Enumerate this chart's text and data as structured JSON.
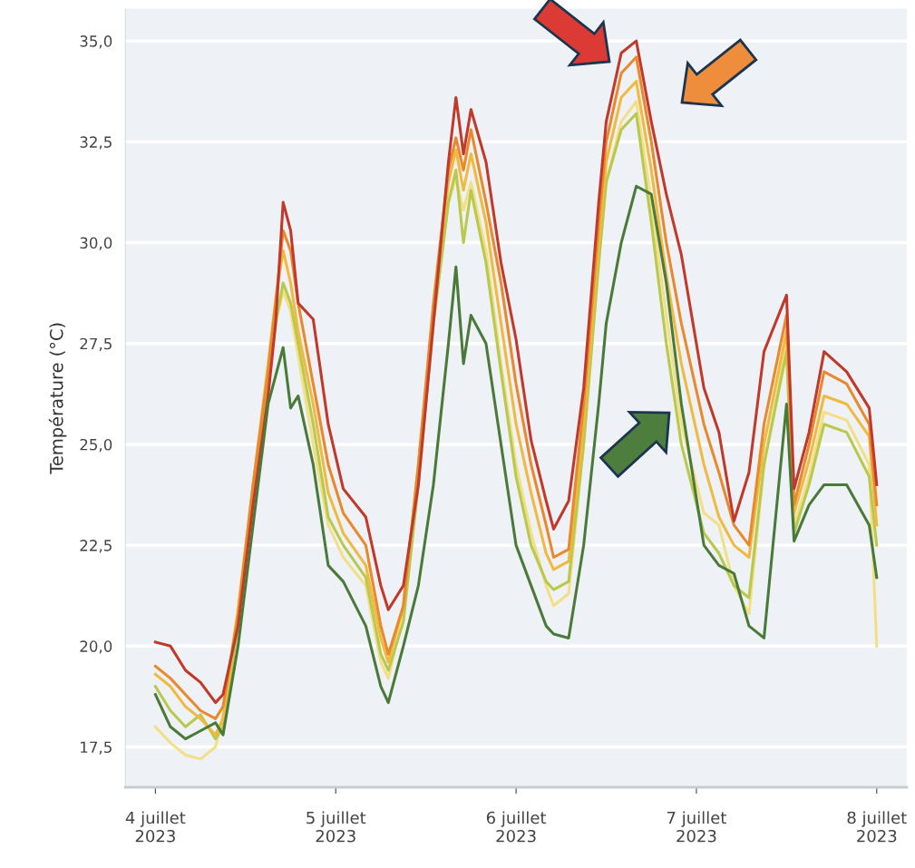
{
  "chart_data": {
    "type": "line",
    "ylabel": "Température (°C)",
    "x": [
      "2023-07-04T00:00",
      "2023-07-04T02:00",
      "2023-07-04T04:00",
      "2023-07-04T06:00",
      "2023-07-04T08:00",
      "2023-07-04T09:00",
      "2023-07-04T11:00",
      "2023-07-04T13:00",
      "2023-07-04T15:00",
      "2023-07-04T16:00",
      "2023-07-04T17:00",
      "2023-07-04T18:00",
      "2023-07-04T19:00",
      "2023-07-04T21:00",
      "2023-07-04T23:00",
      "2023-07-05T01:00",
      "2023-07-05T04:00",
      "2023-07-05T06:00",
      "2023-07-05T07:00",
      "2023-07-05T09:00",
      "2023-07-05T11:00",
      "2023-07-05T13:00",
      "2023-07-05T15:00",
      "2023-07-05T16:00",
      "2023-07-05T17:00",
      "2023-07-05T18:00",
      "2023-07-05T20:00",
      "2023-07-05T22:00",
      "2023-07-06T00:00",
      "2023-07-06T02:00",
      "2023-07-06T04:00",
      "2023-07-06T05:00",
      "2023-07-06T07:00",
      "2023-07-06T09:00",
      "2023-07-06T11:00",
      "2023-07-06T12:00",
      "2023-07-06T14:00",
      "2023-07-06T16:00",
      "2023-07-06T18:00",
      "2023-07-06T20:00",
      "2023-07-06T22:00",
      "2023-07-07T01:00",
      "2023-07-07T03:00",
      "2023-07-07T05:00",
      "2023-07-07T07:00",
      "2023-07-07T09:00",
      "2023-07-07T12:00",
      "2023-07-07T13:00",
      "2023-07-07T15:00",
      "2023-07-07T17:00",
      "2023-07-07T20:00",
      "2023-07-07T23:00",
      "2023-07-08T00:00"
    ],
    "series": [
      {
        "color": "#f3df86",
        "values": [
          18.0,
          17.6,
          17.3,
          17.2,
          17.5,
          18.3,
          21.0,
          24.0,
          26.5,
          28.0,
          28.8,
          28.3,
          27.2,
          25.0,
          23.0,
          22.2,
          21.5,
          19.6,
          19.2,
          20.8,
          24.2,
          28.0,
          31.0,
          31.6,
          30.8,
          31.5,
          29.8,
          27.0,
          24.5,
          22.8,
          21.5,
          21.0,
          21.3,
          25.0,
          29.5,
          31.5,
          33.0,
          33.5,
          31.0,
          28.2,
          25.5,
          23.3,
          23.0,
          21.5,
          20.8,
          24.5,
          27.5,
          23.0,
          24.2,
          25.8,
          25.6,
          24.5,
          20.0
        ]
      },
      {
        "color": "#b8c94c",
        "values": [
          19.0,
          18.4,
          18.0,
          18.3,
          17.7,
          18.0,
          20.5,
          23.7,
          26.6,
          28.0,
          29.0,
          28.5,
          27.5,
          25.5,
          23.2,
          22.5,
          21.7,
          19.8,
          19.4,
          20.6,
          24.0,
          28.0,
          31.0,
          31.8,
          30.0,
          31.3,
          29.5,
          26.8,
          24.2,
          22.5,
          21.6,
          21.4,
          21.6,
          25.0,
          29.5,
          31.5,
          32.8,
          33.2,
          30.5,
          27.5,
          25.0,
          22.8,
          22.3,
          21.5,
          21.2,
          24.5,
          27.3,
          22.8,
          24.0,
          25.5,
          25.3,
          24.2,
          22.5
        ]
      },
      {
        "color": "#f0b940",
        "values": [
          19.3,
          19.0,
          18.5,
          18.2,
          17.8,
          18.2,
          20.8,
          24.0,
          27.0,
          28.6,
          29.8,
          29.0,
          27.8,
          26.0,
          23.8,
          22.8,
          22.0,
          20.2,
          19.6,
          21.0,
          24.5,
          28.3,
          31.5,
          32.3,
          31.3,
          32.2,
          30.5,
          28.0,
          25.5,
          23.8,
          22.3,
          21.9,
          22.1,
          25.5,
          30.0,
          32.0,
          33.6,
          34.0,
          31.8,
          29.2,
          27.0,
          24.5,
          23.2,
          22.5,
          22.2,
          25.0,
          27.8,
          23.3,
          24.6,
          26.2,
          26.0,
          25.2,
          23.0
        ]
      },
      {
        "color": "#e8892e",
        "values": [
          19.5,
          19.2,
          18.8,
          18.4,
          18.2,
          18.5,
          20.8,
          24.0,
          26.8,
          28.5,
          30.3,
          29.8,
          28.5,
          26.5,
          24.5,
          23.3,
          22.5,
          20.5,
          19.8,
          21.0,
          24.5,
          28.5,
          31.8,
          32.6,
          31.8,
          32.8,
          31.0,
          29.0,
          26.5,
          24.5,
          23.0,
          22.2,
          22.4,
          26.0,
          30.5,
          32.5,
          34.2,
          34.6,
          32.5,
          30.0,
          28.0,
          25.5,
          24.3,
          23.0,
          22.5,
          25.5,
          28.2,
          23.5,
          25.0,
          26.8,
          26.5,
          25.5,
          23.5
        ]
      },
      {
        "color": "#c0392b",
        "values": [
          20.1,
          20.0,
          19.4,
          19.1,
          18.6,
          18.8,
          20.5,
          23.5,
          26.2,
          28.0,
          31.0,
          30.3,
          28.5,
          28.1,
          25.5,
          23.9,
          23.2,
          21.5,
          20.9,
          21.5,
          24.0,
          28.0,
          32.0,
          33.6,
          32.2,
          33.3,
          32.0,
          29.5,
          27.6,
          25.1,
          23.6,
          22.9,
          23.6,
          26.4,
          31.0,
          33.0,
          34.7,
          35.0,
          33.0,
          31.2,
          29.7,
          26.4,
          25.3,
          23.1,
          24.3,
          27.3,
          28.7,
          23.9,
          25.3,
          27.3,
          26.8,
          25.9,
          24.0
        ]
      },
      {
        "color": "#4a7a3a",
        "values": [
          18.8,
          18.0,
          17.7,
          17.9,
          18.1,
          17.8,
          20.0,
          23.0,
          26.0,
          26.7,
          27.4,
          25.9,
          26.2,
          24.5,
          22.0,
          21.6,
          20.5,
          19.0,
          18.6,
          20.0,
          21.5,
          24.0,
          27.5,
          29.4,
          27.0,
          28.2,
          27.5,
          25.0,
          22.5,
          21.5,
          20.5,
          20.3,
          20.2,
          22.5,
          26.0,
          28.0,
          30.0,
          31.4,
          31.2,
          29.0,
          26.0,
          22.5,
          22.0,
          21.8,
          20.5,
          20.2,
          26.0,
          22.6,
          23.5,
          24.0,
          24.0,
          23.0,
          21.7
        ]
      }
    ],
    "xlim": [
      "2023-07-03T20:00",
      "2023-07-08T04:00"
    ],
    "xticks": [
      {
        "value": "2023-07-04",
        "label": "4 juillet\n2023"
      },
      {
        "value": "2023-07-05",
        "label": "5 juillet\n2023"
      },
      {
        "value": "2023-07-06",
        "label": "6 juillet\n2023"
      },
      {
        "value": "2023-07-07",
        "label": "7 juillet\n2023"
      },
      {
        "value": "2023-07-08",
        "label": "8 juillet\n2023"
      }
    ],
    "ylim": [
      16.5,
      35.8
    ],
    "yticks": [
      {
        "value": 17.5,
        "label": "17,5"
      },
      {
        "value": 20,
        "label": "20,0"
      },
      {
        "value": 22.5,
        "label": "22,5"
      },
      {
        "value": 25,
        "label": "25,0"
      },
      {
        "value": 27.5,
        "label": "27,5"
      },
      {
        "value": 30,
        "label": "30,0"
      },
      {
        "value": 32.5,
        "label": "32,5"
      },
      {
        "value": 35,
        "label": "35,0"
      }
    ],
    "grid": "y",
    "legend": false,
    "marker": "none",
    "line_style": "solid"
  }
}
